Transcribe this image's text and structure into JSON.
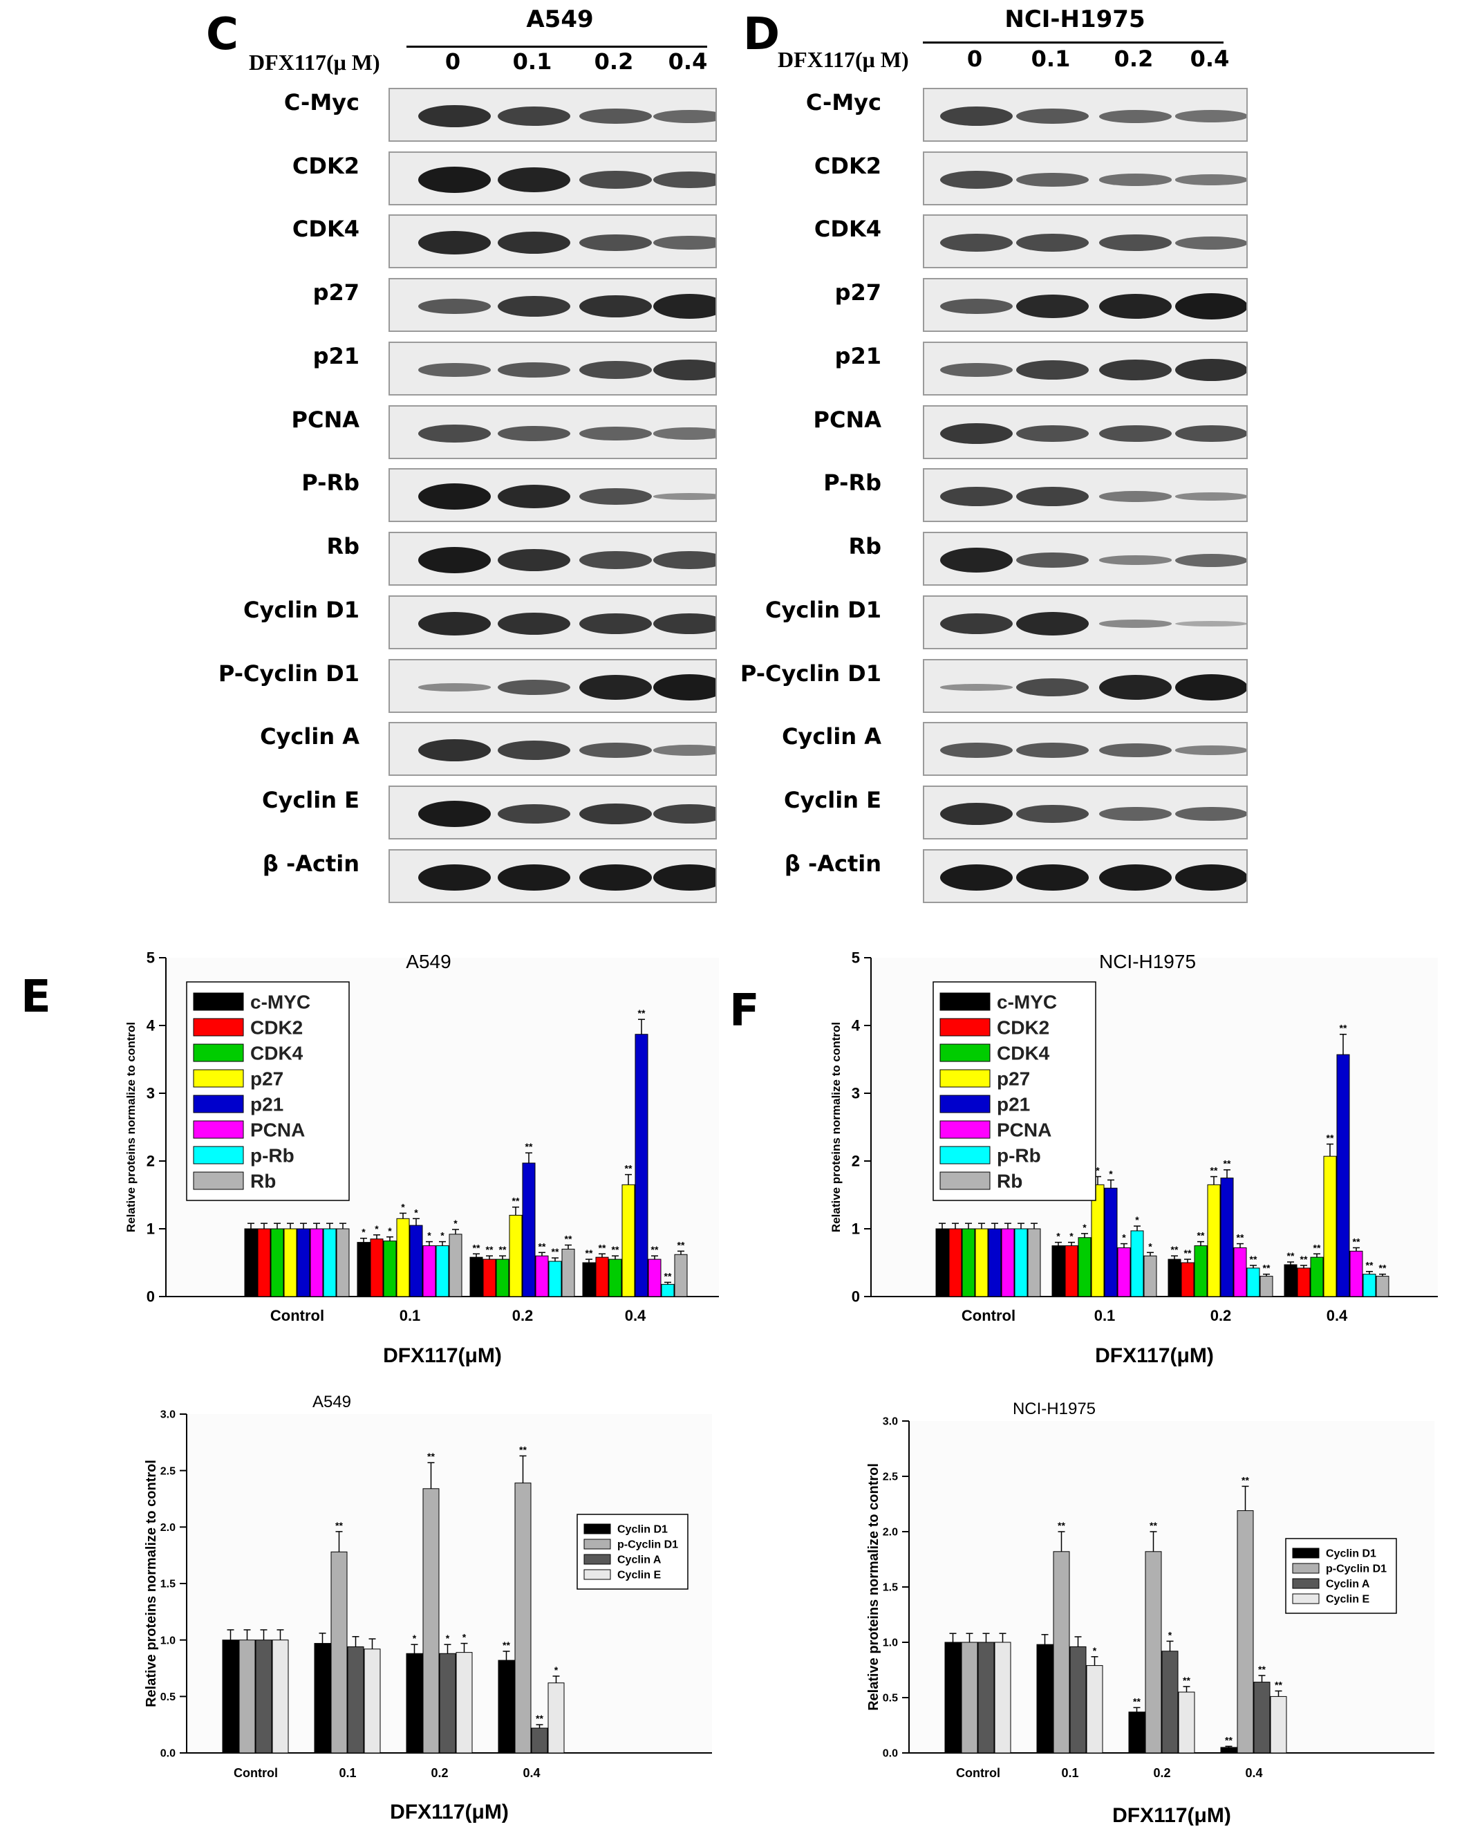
{
  "blots": [
    {
      "panel": "C",
      "title": "A549",
      "dose_label": "DFX117(μ M)",
      "doses": [
        "0",
        "0.1",
        "0.2",
        "0.4"
      ],
      "rows": [
        {
          "label": "C-Myc",
          "bands": [
            0.85,
            0.75,
            0.6,
            0.5
          ]
        },
        {
          "label": "CDK2",
          "bands": [
            1.0,
            0.95,
            0.7,
            0.65
          ]
        },
        {
          "label": "CDK4",
          "bands": [
            0.9,
            0.85,
            0.65,
            0.55
          ]
        },
        {
          "label": "p27",
          "bands": [
            0.6,
            0.8,
            0.85,
            0.95
          ]
        },
        {
          "label": "p21",
          "bands": [
            0.55,
            0.6,
            0.7,
            0.8
          ]
        },
        {
          "label": "PCNA",
          "bands": [
            0.7,
            0.6,
            0.55,
            0.45
          ]
        },
        {
          "label": "P-Rb",
          "bands": [
            1.0,
            0.9,
            0.65,
            0.25
          ]
        },
        {
          "label": "Rb",
          "bands": [
            1.0,
            0.85,
            0.7,
            0.7
          ]
        },
        {
          "label": "Cyclin D1",
          "bands": [
            0.9,
            0.85,
            0.8,
            0.8
          ]
        },
        {
          "label": "P-Cyclin D1",
          "bands": [
            0.3,
            0.6,
            0.95,
            1.0
          ]
        },
        {
          "label": "Cyclin A",
          "bands": [
            0.85,
            0.75,
            0.6,
            0.4
          ]
        },
        {
          "label": "Cyclin E",
          "bands": [
            1.0,
            0.75,
            0.8,
            0.75
          ]
        },
        {
          "label": "β -Actin",
          "bands": [
            1.0,
            1.0,
            1.0,
            1.0
          ]
        }
      ]
    },
    {
      "panel": "D",
      "title": "NCI-H1975",
      "dose_label": "DFX117(μ M)",
      "doses": [
        "0",
        "0.1",
        "0.2",
        "0.4"
      ],
      "rows": [
        {
          "label": "C-Myc",
          "bands": [
            0.75,
            0.6,
            0.5,
            0.45
          ]
        },
        {
          "label": "CDK2",
          "bands": [
            0.7,
            0.55,
            0.45,
            0.4
          ]
        },
        {
          "label": "CDK4",
          "bands": [
            0.7,
            0.7,
            0.65,
            0.5
          ]
        },
        {
          "label": "p27",
          "bands": [
            0.6,
            0.9,
            0.95,
            1.0
          ]
        },
        {
          "label": "p21",
          "bands": [
            0.55,
            0.75,
            0.8,
            0.85
          ]
        },
        {
          "label": "PCNA",
          "bands": [
            0.8,
            0.65,
            0.65,
            0.65
          ]
        },
        {
          "label": "P-Rb",
          "bands": [
            0.75,
            0.75,
            0.4,
            0.3
          ]
        },
        {
          "label": "Rb",
          "bands": [
            0.95,
            0.6,
            0.35,
            0.5
          ]
        },
        {
          "label": "Cyclin D1",
          "bands": [
            0.8,
            0.9,
            0.3,
            0.1
          ]
        },
        {
          "label": "P-Cyclin D1",
          "bands": [
            0.25,
            0.7,
            0.95,
            1.0
          ]
        },
        {
          "label": "Cyclin A",
          "bands": [
            0.6,
            0.6,
            0.55,
            0.35
          ]
        },
        {
          "label": "Cyclin E",
          "bands": [
            0.85,
            0.7,
            0.55,
            0.55
          ]
        },
        {
          "label": "β -Actin",
          "bands": [
            1.0,
            1.0,
            1.0,
            1.0
          ]
        }
      ]
    }
  ],
  "chart_data": [
    {
      "panel": "E",
      "type": "bar",
      "title": "A549",
      "xlabel": "DFX117(μM)",
      "ylabel": "Relative proteins normalize to control",
      "ylim": [
        0,
        5
      ],
      "yticks": [
        "0",
        "1",
        "2",
        "3",
        "4",
        "5"
      ],
      "categories": [
        "Control",
        "0.1",
        "0.2",
        "0.4"
      ],
      "legend_position": "top-left",
      "series": [
        {
          "name": "c-MYC",
          "color": "#000000",
          "values": [
            1.0,
            0.8,
            0.58,
            0.5
          ],
          "errors": [
            0.08,
            0.06,
            0.05,
            0.05
          ],
          "marks": [
            "",
            "*",
            "**",
            "**"
          ]
        },
        {
          "name": "CDK2",
          "color": "#ff0000",
          "values": [
            1.0,
            0.85,
            0.55,
            0.58
          ],
          "errors": [
            0.08,
            0.06,
            0.05,
            0.05
          ],
          "marks": [
            "",
            "*",
            "**",
            "**"
          ]
        },
        {
          "name": "CDK4",
          "color": "#00cc00",
          "values": [
            1.0,
            0.82,
            0.55,
            0.55
          ],
          "errors": [
            0.08,
            0.06,
            0.05,
            0.05
          ],
          "marks": [
            "",
            "*",
            "**",
            "**"
          ]
        },
        {
          "name": "p27",
          "color": "#ffff00",
          "values": [
            1.0,
            1.15,
            1.2,
            1.65
          ],
          "errors": [
            0.08,
            0.08,
            0.12,
            0.15
          ],
          "marks": [
            "",
            "*",
            "**",
            "**"
          ]
        },
        {
          "name": "p21",
          "color": "#0000cc",
          "values": [
            1.0,
            1.05,
            1.97,
            3.87
          ],
          "errors": [
            0.08,
            0.1,
            0.15,
            0.22
          ],
          "marks": [
            "",
            "*",
            "**",
            "**"
          ]
        },
        {
          "name": "PCNA",
          "color": "#ff00ff",
          "values": [
            1.0,
            0.75,
            0.6,
            0.55
          ],
          "errors": [
            0.08,
            0.06,
            0.05,
            0.05
          ],
          "marks": [
            "",
            "*",
            "**",
            "**"
          ]
        },
        {
          "name": "p-Rb",
          "color": "#00ffff",
          "values": [
            1.0,
            0.75,
            0.52,
            0.18
          ],
          "errors": [
            0.08,
            0.06,
            0.05,
            0.03
          ],
          "marks": [
            "",
            "*",
            "**",
            "**"
          ]
        },
        {
          "name": "Rb",
          "color": "#b3b3b3",
          "values": [
            1.0,
            0.92,
            0.7,
            0.62
          ],
          "errors": [
            0.08,
            0.07,
            0.06,
            0.05
          ],
          "marks": [
            "",
            "*",
            "**",
            "**"
          ]
        }
      ]
    },
    {
      "panel": "F",
      "type": "bar",
      "title": "NCI-H1975",
      "xlabel": "DFX117(μM)",
      "ylabel": "Relative proteins normalize to control",
      "ylim": [
        0,
        5
      ],
      "yticks": [
        "0",
        "1",
        "2",
        "3",
        "4",
        "5"
      ],
      "categories": [
        "Control",
        "0.1",
        "0.2",
        "0.4"
      ],
      "legend_position": "top-left",
      "series": [
        {
          "name": "c-MYC",
          "color": "#000000",
          "values": [
            1.0,
            0.75,
            0.55,
            0.47
          ],
          "errors": [
            0.08,
            0.05,
            0.05,
            0.04
          ],
          "marks": [
            "",
            "*",
            "**",
            "**"
          ]
        },
        {
          "name": "CDK2",
          "color": "#ff0000",
          "values": [
            1.0,
            0.75,
            0.5,
            0.42
          ],
          "errors": [
            0.08,
            0.05,
            0.05,
            0.04
          ],
          "marks": [
            "",
            "*",
            "**",
            "**"
          ]
        },
        {
          "name": "CDK4",
          "color": "#00cc00",
          "values": [
            1.0,
            0.87,
            0.75,
            0.58
          ],
          "errors": [
            0.08,
            0.06,
            0.06,
            0.05
          ],
          "marks": [
            "",
            "*",
            "**",
            "**"
          ]
        },
        {
          "name": "p27",
          "color": "#ffff00",
          "values": [
            1.0,
            1.65,
            1.65,
            2.07
          ],
          "errors": [
            0.08,
            0.12,
            0.12,
            0.18
          ],
          "marks": [
            "",
            "*",
            "**",
            "**"
          ]
        },
        {
          "name": "p21",
          "color": "#0000cc",
          "values": [
            1.0,
            1.6,
            1.75,
            3.57
          ],
          "errors": [
            0.08,
            0.12,
            0.12,
            0.3
          ],
          "marks": [
            "",
            "*",
            "**",
            "**"
          ]
        },
        {
          "name": "PCNA",
          "color": "#ff00ff",
          "values": [
            1.0,
            0.72,
            0.72,
            0.67
          ],
          "errors": [
            0.08,
            0.06,
            0.06,
            0.05
          ],
          "marks": [
            "",
            "*",
            "**",
            "**"
          ]
        },
        {
          "name": "p-Rb",
          "color": "#00ffff",
          "values": [
            1.0,
            0.97,
            0.42,
            0.33
          ],
          "errors": [
            0.08,
            0.07,
            0.04,
            0.04
          ],
          "marks": [
            "",
            "*",
            "**",
            "**"
          ]
        },
        {
          "name": "Rb",
          "color": "#b3b3b3",
          "values": [
            1.0,
            0.6,
            0.3,
            0.3
          ],
          "errors": [
            0.08,
            0.05,
            0.03,
            0.03
          ],
          "marks": [
            "",
            "*",
            "**",
            "**"
          ]
        }
      ]
    },
    {
      "panel": "",
      "type": "bar",
      "title": "A549",
      "xlabel": "DFX117(μM)",
      "ylabel": "Relative proteins normalize to control",
      "ylim": [
        0,
        3
      ],
      "yticks": [
        "0.0",
        "0.5",
        "1.0",
        "1.5",
        "2.0",
        "2.5",
        "3.0"
      ],
      "categories": [
        "Control",
        "0.1",
        "0.2",
        "0.4"
      ],
      "legend_position": "right",
      "series": [
        {
          "name": "Cyclin D1",
          "color": "#000000",
          "values": [
            1.0,
            0.97,
            0.88,
            0.82
          ],
          "errors": [
            0.09,
            0.09,
            0.08,
            0.08
          ],
          "marks": [
            "",
            "",
            "*",
            "**"
          ]
        },
        {
          "name": "p-Cyclin D1",
          "color": "#b0b0b0",
          "values": [
            1.0,
            1.78,
            2.34,
            2.39
          ],
          "errors": [
            0.09,
            0.18,
            0.23,
            0.24
          ],
          "marks": [
            "",
            "**",
            "**",
            "**"
          ]
        },
        {
          "name": "Cyclin A",
          "color": "#585858",
          "values": [
            1.0,
            0.94,
            0.88,
            0.22
          ],
          "errors": [
            0.09,
            0.09,
            0.08,
            0.03
          ],
          "marks": [
            "",
            "",
            "*",
            "**"
          ]
        },
        {
          "name": "Cyclin E",
          "color": "#e8e8e8",
          "values": [
            1.0,
            0.92,
            0.89,
            0.62
          ],
          "errors": [
            0.09,
            0.09,
            0.08,
            0.06
          ],
          "marks": [
            "",
            "",
            "*",
            "*"
          ]
        }
      ]
    },
    {
      "panel": "",
      "type": "bar",
      "title": "NCI-H1975",
      "xlabel": "DFX117(μM)",
      "ylabel": "Relative proteins normalize to control",
      "ylim": [
        0,
        3
      ],
      "yticks": [
        "0.0",
        "0.5",
        "1.0",
        "1.5",
        "2.0",
        "2.5",
        "3.0"
      ],
      "categories": [
        "Control",
        "0.1",
        "0.2",
        "0.4"
      ],
      "legend_position": "right",
      "series": [
        {
          "name": "Cyclin D1",
          "color": "#000000",
          "values": [
            1.0,
            0.98,
            0.37,
            0.05
          ],
          "errors": [
            0.08,
            0.09,
            0.04,
            0.01
          ],
          "marks": [
            "",
            "",
            "**",
            "**"
          ]
        },
        {
          "name": "p-Cyclin D1",
          "color": "#b0b0b0",
          "values": [
            1.0,
            1.82,
            1.82,
            2.19
          ],
          "errors": [
            0.08,
            0.18,
            0.18,
            0.22
          ],
          "marks": [
            "",
            "**",
            "**",
            "**"
          ]
        },
        {
          "name": "Cyclin A",
          "color": "#585858",
          "values": [
            1.0,
            0.96,
            0.92,
            0.64
          ],
          "errors": [
            0.08,
            0.09,
            0.09,
            0.06
          ],
          "marks": [
            "",
            "",
            "*",
            "**"
          ]
        },
        {
          "name": "Cyclin E",
          "color": "#e8e8e8",
          "values": [
            1.0,
            0.79,
            0.55,
            0.51
          ],
          "errors": [
            0.08,
            0.08,
            0.05,
            0.05
          ],
          "marks": [
            "",
            "*",
            "**",
            "**"
          ]
        }
      ]
    }
  ]
}
